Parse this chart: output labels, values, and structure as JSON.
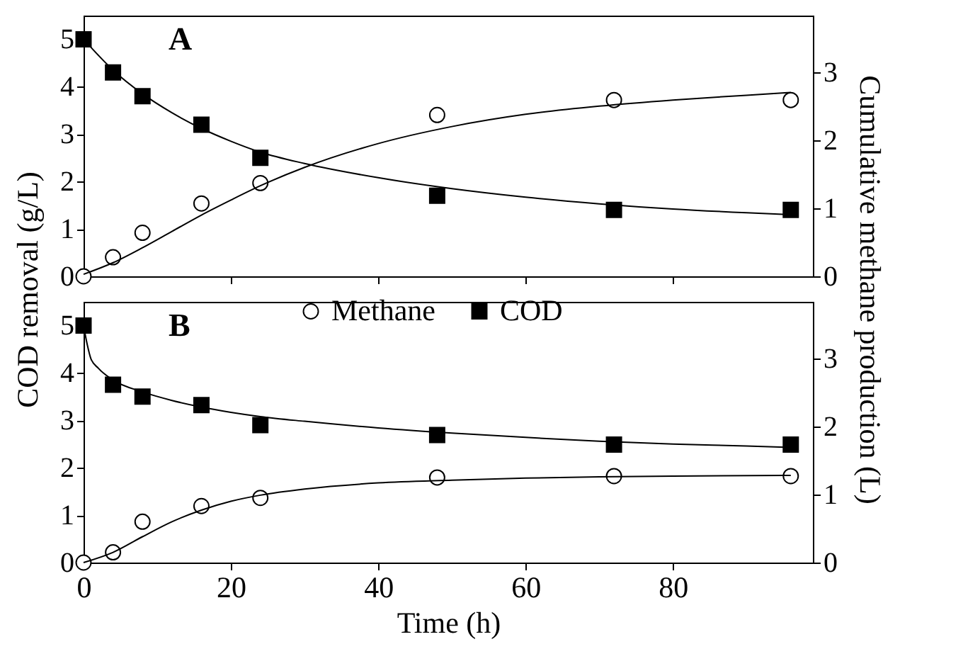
{
  "chart_data": [
    {
      "type": "scatter",
      "annotations": [
        "A"
      ],
      "ylabel": "COD removal (g/L)",
      "y2label": "Cumulative methane production (L)",
      "xlim": [
        0,
        99
      ],
      "xticks": [
        0,
        20,
        40,
        60,
        80
      ],
      "ylim": [
        0,
        5.5
      ],
      "yticks": [
        0,
        1,
        2,
        3,
        4,
        5
      ],
      "y2lim": [
        0,
        3.83
      ],
      "y2ticks": [
        0,
        1,
        2,
        3
      ],
      "tick_labels": "y",
      "grid": false,
      "x": [
        0,
        4,
        8,
        16,
        24,
        48,
        72,
        96
      ],
      "series": [
        {
          "axis": "y2",
          "marker": "circle",
          "color": "#000000",
          "values": [
            0,
            0.28,
            0.64,
            1.07,
            1.37,
            2.37,
            2.59,
            2.59
          ]
        },
        {
          "marker": "square",
          "color": "#000000",
          "values": [
            5.0,
            4.3,
            3.8,
            3.2,
            2.5,
            1.7,
            1.4,
            1.4
          ]
        },
        {
          "type": "line",
          "axis": "y2",
          "color": "#000000",
          "x": [
            0,
            4,
            8,
            12,
            16,
            20,
            24,
            30,
            40,
            50,
            60,
            70,
            80,
            90,
            96
          ],
          "values": [
            0.03,
            0.2,
            0.42,
            0.66,
            0.9,
            1.12,
            1.33,
            1.6,
            1.95,
            2.2,
            2.38,
            2.5,
            2.59,
            2.66,
            2.7
          ]
        },
        {
          "type": "line",
          "color": "#000000",
          "x": [
            0,
            4,
            8,
            12,
            16,
            20,
            24,
            30,
            40,
            50,
            60,
            70,
            80,
            90,
            96
          ],
          "values": [
            5.0,
            4.35,
            3.85,
            3.45,
            3.12,
            2.85,
            2.62,
            2.38,
            2.08,
            1.85,
            1.67,
            1.53,
            1.42,
            1.34,
            1.3
          ]
        }
      ]
    },
    {
      "type": "scatter",
      "annotations": [
        "B"
      ],
      "xlabel": "Time (h)",
      "xlim": [
        0,
        99
      ],
      "xticks": [
        0,
        20,
        40,
        60,
        80
      ],
      "ylim": [
        0,
        5.5
      ],
      "yticks": [
        0,
        1,
        2,
        3,
        4,
        5
      ],
      "y2lim": [
        0,
        3.83
      ],
      "y2ticks": [
        0,
        1,
        2,
        3
      ],
      "grid": false,
      "legend": "top",
      "x": [
        0,
        4,
        8,
        16,
        24,
        48,
        72,
        96
      ],
      "series": [
        {
          "name": "Methane",
          "axis": "y2",
          "marker": "circle",
          "color": "#000000",
          "values": [
            0,
            0.15,
            0.6,
            0.83,
            0.95,
            1.25,
            1.27,
            1.27
          ]
        },
        {
          "name": "COD",
          "marker": "square",
          "color": "#000000",
          "values": [
            5.0,
            3.75,
            3.5,
            3.32,
            2.9,
            2.69,
            2.49,
            2.49
          ]
        },
        {
          "type": "line",
          "axis": "y2",
          "color": "#000000",
          "x": [
            0,
            4,
            8,
            12,
            16,
            20,
            24,
            30,
            40,
            50,
            60,
            70,
            80,
            96
          ],
          "values": [
            0,
            0.15,
            0.38,
            0.6,
            0.77,
            0.9,
            0.99,
            1.08,
            1.17,
            1.21,
            1.24,
            1.26,
            1.27,
            1.28
          ]
        },
        {
          "type": "line",
          "color": "#000000",
          "x": [
            0,
            0.5,
            1,
            2,
            4,
            8,
            12,
            16,
            20,
            24,
            30,
            40,
            50,
            60,
            70,
            80,
            90,
            96
          ],
          "values": [
            5.0,
            4.6,
            4.3,
            4.1,
            3.85,
            3.6,
            3.42,
            3.28,
            3.17,
            3.08,
            2.98,
            2.84,
            2.73,
            2.64,
            2.56,
            2.5,
            2.46,
            2.43
          ]
        }
      ]
    }
  ]
}
